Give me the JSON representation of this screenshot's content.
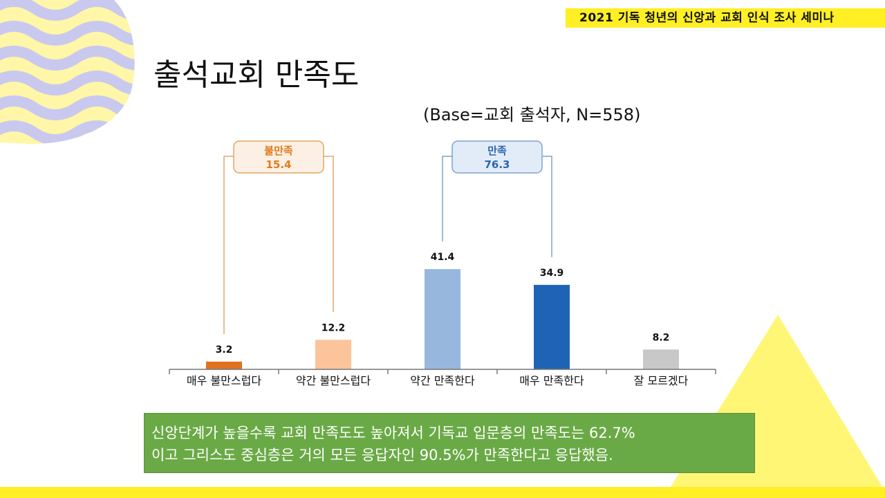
{
  "banner": "2021 기독 청년의 신앙과 교회 인식 조사 세미나",
  "title": "출석교회 만족도",
  "base_note": "(Base=교회 출석자, N=558)",
  "summary": {
    "line1": "신앙단계가 높을수록 교회 만족도도 높아져서 기독교 입문층의 만족도는 62.7%",
    "line2": "이고 그리스도 중심층은 거의 모든 응답자인 90.5%가 만족한다고 응답했음."
  },
  "chart_data": {
    "type": "bar",
    "title": "",
    "xlabel": "",
    "ylabel": "",
    "categories": [
      "매우 불만스럽다",
      "약간 불만스럽다",
      "약간 만족한다",
      "매우 만족한다",
      "잘 모르겠다"
    ],
    "values": [
      3.2,
      12.2,
      41.4,
      34.9,
      8.2
    ],
    "value_labels": [
      "3.2",
      "12.2",
      "41.4",
      "34.9",
      "8.2"
    ],
    "colors": [
      "#e2711d",
      "#fcc49a",
      "#97b7dd",
      "#1f64b4",
      "#c8c8c8"
    ],
    "ylim": [
      0,
      50
    ],
    "grid": false,
    "groups": [
      {
        "label": "불만족",
        "value": "15.4",
        "color": "#e07b1a",
        "fill": "#fcf0e4",
        "border": "#e2a56a",
        "members": [
          0,
          1
        ]
      },
      {
        "label": "만족",
        "value": "76.3",
        "color": "#2a66ad",
        "fill": "#e2ecf8",
        "border": "#7fa3cc",
        "members": [
          2,
          3
        ]
      }
    ]
  },
  "decor": {
    "wave_color": "#c9c9ef",
    "blob_color": "#fff6a8",
    "triangle_color": "#fff676"
  }
}
